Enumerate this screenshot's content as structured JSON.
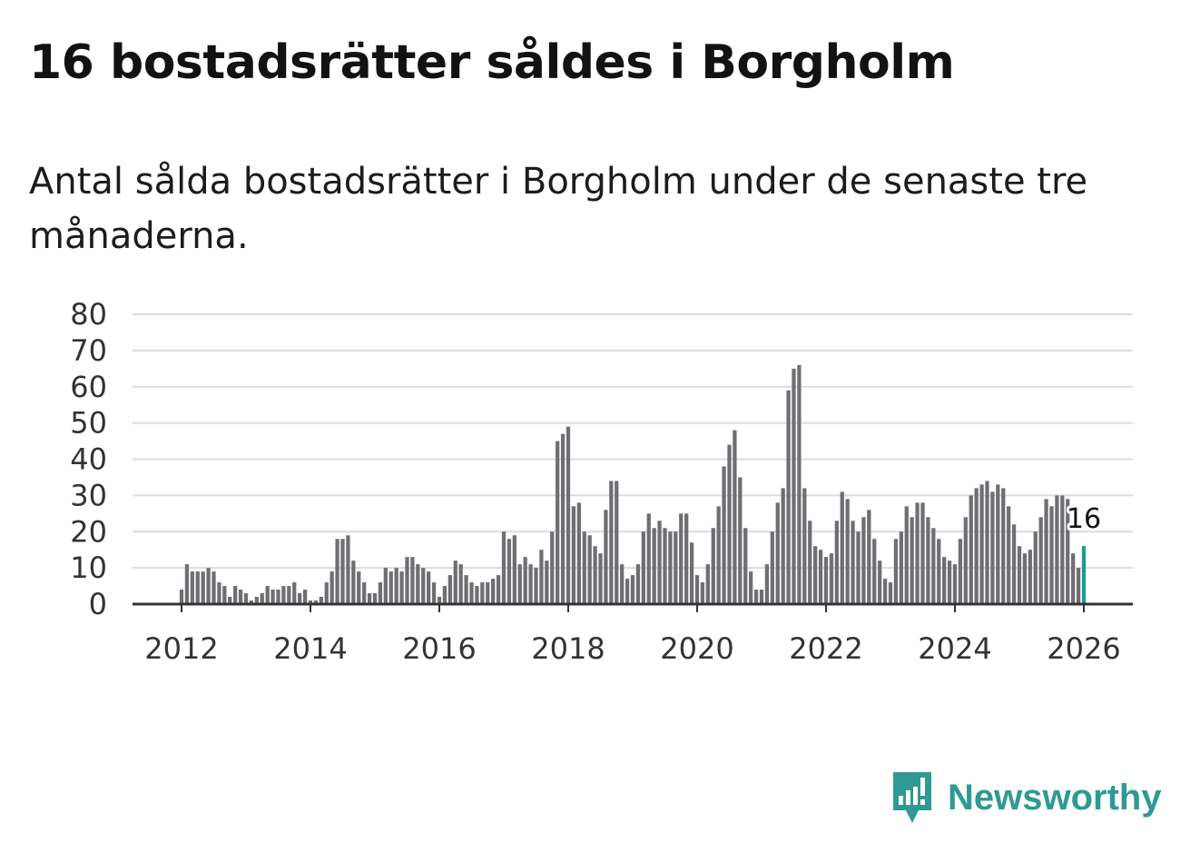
{
  "header": {
    "title": "16 bostadsrätter såldes i Borgholm",
    "subtitle": "Antal sålda bostadsrätter i Borgholm under de senaste tre månaderna."
  },
  "brand": {
    "name": "Newsworthy",
    "color": "#2e9a93",
    "icon": "newsworthy-logo-icon"
  },
  "chart_data": {
    "type": "bar",
    "title": "Antal sålda bostadsrätter i Borgholm",
    "xlabel": "",
    "ylabel": "",
    "ylim": [
      0,
      80
    ],
    "yticks": [
      "0",
      "10",
      "20",
      "30",
      "40",
      "50",
      "60",
      "70",
      "80"
    ],
    "xticks": [
      "2012",
      "2014",
      "2016",
      "2018",
      "2020",
      "2022",
      "2024",
      "2026"
    ],
    "bar_color": "#6f6e73",
    "highlight_color": "#1f9a92",
    "grid": true,
    "highlight_label": "16",
    "series": [
      {
        "name": "Antal sålda bostadsrätter",
        "start": "2012-01",
        "values": [
          4,
          11,
          9,
          9,
          9,
          10,
          9,
          6,
          5,
          2,
          5,
          4,
          3,
          1,
          2,
          3,
          5,
          4,
          4,
          5,
          5,
          6,
          3,
          4,
          1,
          1,
          2,
          6,
          9,
          18,
          18,
          19,
          12,
          9,
          6,
          3,
          3,
          6,
          10,
          9,
          10,
          9,
          13,
          13,
          11,
          10,
          9,
          6,
          2,
          5,
          8,
          12,
          11,
          8,
          6,
          5,
          6,
          6,
          7,
          8,
          20,
          18,
          19,
          11,
          13,
          11,
          10,
          15,
          12,
          20,
          45,
          47,
          49,
          27,
          28,
          20,
          19,
          16,
          14,
          26,
          34,
          34,
          11,
          7,
          8,
          11,
          20,
          25,
          21,
          23,
          21,
          20,
          20,
          25,
          25,
          17,
          8,
          6,
          11,
          21,
          27,
          38,
          44,
          48,
          35,
          21,
          9,
          4,
          4,
          11,
          20,
          28,
          32,
          59,
          65,
          66,
          32,
          23,
          16,
          15,
          13,
          14,
          23,
          31,
          29,
          23,
          20,
          24,
          26,
          18,
          12,
          7,
          6,
          18,
          20,
          27,
          24,
          28,
          28,
          24,
          21,
          18,
          13,
          12,
          11,
          18,
          24,
          30,
          32,
          33,
          34,
          31,
          33,
          32,
          27,
          22,
          16,
          14,
          15,
          20,
          24,
          29,
          27,
          30,
          30,
          29,
          14,
          10,
          16
        ]
      }
    ]
  }
}
